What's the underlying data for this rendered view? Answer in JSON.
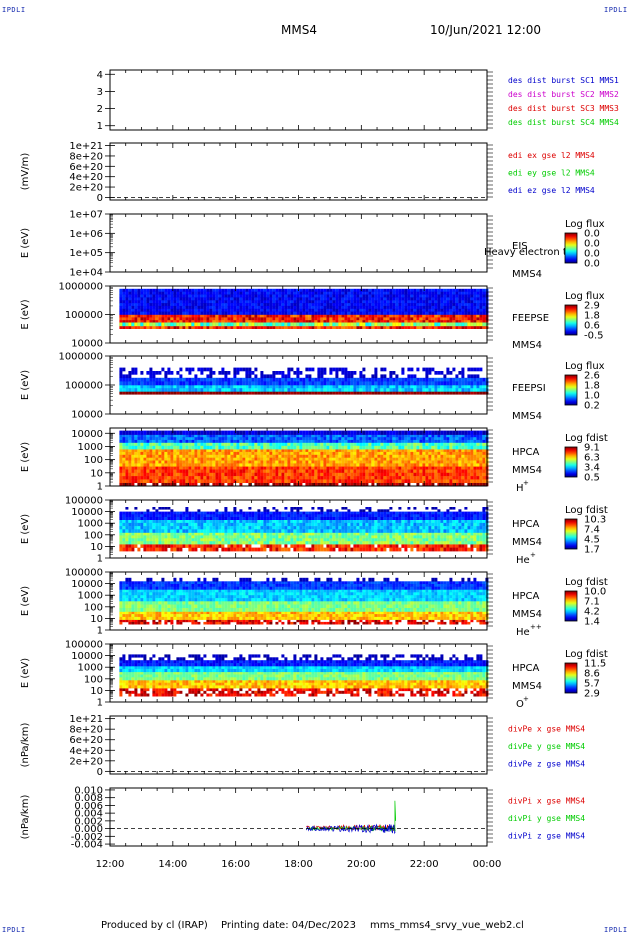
{
  "header": {
    "mission": "MMS4",
    "datetime": "10/Jun/2021 12:00"
  },
  "corner_mark": "IPDLI",
  "footer": {
    "produced_by": "Produced by cl (IRAP)",
    "printing_date": "Printing date: 04/Dec/2023",
    "filename": "mms_mms4_srvy_vue_web2.cl"
  },
  "colors": {
    "blue": "#0000cc",
    "magenta": "#cc00cc",
    "red": "#dd0000",
    "green": "#00cc00"
  },
  "chart_data": {
    "type": "stacked-timeseries",
    "time_axis": {
      "ticks": [
        "12:00",
        "14:00",
        "16:00",
        "18:00",
        "20:00",
        "22:00",
        "00:00"
      ],
      "range_hours": [
        12,
        24
      ]
    },
    "panels": [
      {
        "id": "p1",
        "kind": "line",
        "ylabel": "",
        "ytick_labels": [
          "1",
          "2",
          "3",
          "4"
        ],
        "yrange": [
          0.75,
          4.25
        ],
        "yticks": [
          1,
          2,
          3,
          4
        ],
        "legend": [
          {
            "text": "des dist burst SC1 MMS1",
            "color": "#0000cc"
          },
          {
            "text": "des dist burst SC2 MMS2",
            "color": "#cc00cc"
          },
          {
            "text": "des dist burst SC3 MMS3",
            "color": "#dd0000"
          },
          {
            "text": "des dist burst SC4 MMS4",
            "color": "#00cc00"
          }
        ]
      },
      {
        "id": "p2",
        "kind": "line",
        "ylabel": "(mV/m)",
        "ytick_labels": [
          "0",
          "2e+20",
          "4e+20",
          "6e+20",
          "8e+20",
          "1e+21"
        ],
        "yrange": [
          -5e+19,
          1.05e+21
        ],
        "yticks": [
          0,
          2e+20,
          4e+20,
          6e+20,
          8e+20,
          1e+21
        ],
        "zero_line": true,
        "legend": [
          {
            "text": "edi ex gse l2 MMS4",
            "color": "#dd0000"
          },
          {
            "text": "edi ey gse l2 MMS4",
            "color": "#00cc00"
          },
          {
            "text": "edi ez gse l2 MMS4",
            "color": "#0000cc"
          }
        ]
      },
      {
        "id": "p3",
        "kind": "spectrogram",
        "ylabel": "E (eV)",
        "ytick_labels": [
          "1e+04",
          "1e+05",
          "1e+06",
          "1e+07"
        ],
        "yrange_log": [
          4,
          7
        ],
        "yticks_log": [
          4,
          5,
          6,
          7
        ],
        "labels": [
          "EIS",
          "MMS4"
        ],
        "overlap_text": "Heavy electron to",
        "colorbar": {
          "title": "Log flux",
          "ticks": [
            "0.0",
            "0.0",
            "0.0",
            "0.0"
          ]
        },
        "bands": []
      },
      {
        "id": "p4",
        "kind": "spectrogram",
        "ylabel": "E (eV)",
        "ytick_labels": [
          "10000",
          "100000",
          "1000000"
        ],
        "yrange_log": [
          4,
          6
        ],
        "yticks_log": [
          4,
          5,
          6
        ],
        "labels": [
          "FEEPSE",
          "MMS4"
        ],
        "colorbar": {
          "title": "Log flux",
          "ticks": [
            "2.9",
            "1.8",
            "0.6",
            "-0.5"
          ]
        },
        "bands": [
          {
            "lo": 4.5,
            "hi": 5.0,
            "level": 0.85,
            "noise": 0.12
          },
          {
            "lo": 5.0,
            "hi": 5.9,
            "level": 0.12,
            "noise": 0.06
          },
          {
            "lo": 4.6,
            "hi": 4.72,
            "level": 0.5,
            "noise": 0.15
          }
        ],
        "start_hour": 12.3,
        "end_hour": 23.95
      },
      {
        "id": "p5",
        "kind": "spectrogram",
        "ylabel": "E (eV)",
        "ytick_labels": [
          "10000",
          "100000",
          "1000000"
        ],
        "yrange_log": [
          4,
          6
        ],
        "yticks_log": [
          4,
          5,
          6
        ],
        "labels": [
          "FEEPSI",
          "MMS4"
        ],
        "colorbar": {
          "title": "Log flux",
          "ticks": [
            "2.6",
            "1.8",
            "1.0",
            "0.2"
          ]
        },
        "bands": [
          {
            "lo": 4.68,
            "hi": 4.78,
            "level": 1.0,
            "noise": 0.05
          },
          {
            "lo": 4.78,
            "hi": 5.0,
            "level": 0.32,
            "noise": 0.08
          },
          {
            "lo": 5.0,
            "hi": 5.25,
            "level": 0.18,
            "noise": 0.05
          },
          {
            "lo": 5.25,
            "hi": 5.6,
            "level": 0.08,
            "noise": 0.03,
            "sparse": 0.55
          }
        ],
        "start_hour": 12.3,
        "end_hour": 23.95
      },
      {
        "id": "p6",
        "kind": "spectrogram",
        "ylabel": "E (eV)",
        "ytick_labels": [
          "1",
          "10",
          "100",
          "1000",
          "10000"
        ],
        "yrange_log": [
          0,
          4.4
        ],
        "yticks_log": [
          0,
          1,
          2,
          3,
          4
        ],
        "labels": [
          "HPCA",
          "MMS4",
          "H",
          "+"
        ],
        "colorbar": {
          "title": "Log fdist",
          "ticks": [
            "9.1",
            "6.3",
            "3.4",
            "0.5"
          ]
        },
        "bands": [
          {
            "lo": 0.0,
            "hi": 0.25,
            "level": 1.0,
            "noise": 0.1,
            "sparse": 0.2
          },
          {
            "lo": 0.25,
            "hi": 1.5,
            "level": 0.82,
            "noise": 0.08
          },
          {
            "lo": 1.5,
            "hi": 2.8,
            "level": 0.72,
            "noise": 0.08
          },
          {
            "lo": 2.8,
            "hi": 3.3,
            "level": 0.45,
            "noise": 0.1
          },
          {
            "lo": 3.3,
            "hi": 3.9,
            "level": 0.22,
            "noise": 0.08
          },
          {
            "lo": 3.9,
            "hi": 4.2,
            "level": 0.08,
            "noise": 0.05
          }
        ],
        "start_hour": 12.3,
        "end_hour": 23.95
      },
      {
        "id": "p7",
        "kind": "spectrogram",
        "ylabel": "E (eV)",
        "ytick_labels": [
          "1",
          "10",
          "100",
          "1000",
          "10000",
          "100000"
        ],
        "yrange_log": [
          0,
          5
        ],
        "yticks_log": [
          0,
          1,
          2,
          3,
          4,
          5
        ],
        "labels": [
          "HPCA",
          "MMS4",
          "He",
          "+"
        ],
        "colorbar": {
          "title": "Log fdist",
          "ticks": [
            "10.3",
            "7.4",
            "4.5",
            "1.7"
          ]
        },
        "bands": [
          {
            "lo": 0.6,
            "hi": 1.2,
            "level": 0.85,
            "noise": 0.1,
            "sparse": 0.12
          },
          {
            "lo": 1.2,
            "hi": 2.2,
            "level": 0.5,
            "noise": 0.08
          },
          {
            "lo": 2.2,
            "hi": 3.3,
            "level": 0.32,
            "noise": 0.08
          },
          {
            "lo": 3.3,
            "hi": 4.0,
            "level": 0.15,
            "noise": 0.05
          },
          {
            "lo": 4.0,
            "hi": 4.4,
            "level": 0.05,
            "noise": 0.03,
            "sparse": 0.7
          }
        ],
        "start_hour": 12.3,
        "end_hour": 23.95
      },
      {
        "id": "p8",
        "kind": "spectrogram",
        "ylabel": "E (eV)",
        "ytick_labels": [
          "1",
          "10",
          "100",
          "1000",
          "10000",
          "100000"
        ],
        "yrange_log": [
          0,
          5
        ],
        "yticks_log": [
          0,
          1,
          2,
          3,
          4,
          5
        ],
        "labels": [
          "HPCA",
          "MMS4",
          "He",
          "++"
        ],
        "colorbar": {
          "title": "Log fdist",
          "ticks": [
            "10.0",
            "7.1",
            "4.2",
            "1.4"
          ]
        },
        "bands": [
          {
            "lo": 0.5,
            "hi": 0.9,
            "level": 0.9,
            "noise": 0.1,
            "sparse": 0.3
          },
          {
            "lo": 0.9,
            "hi": 1.6,
            "level": 0.68,
            "noise": 0.08
          },
          {
            "lo": 1.6,
            "hi": 2.5,
            "level": 0.5,
            "noise": 0.06
          },
          {
            "lo": 2.5,
            "hi": 3.5,
            "level": 0.33,
            "noise": 0.06
          },
          {
            "lo": 3.5,
            "hi": 4.2,
            "level": 0.18,
            "noise": 0.05
          },
          {
            "lo": 4.2,
            "hi": 4.5,
            "level": 0.06,
            "noise": 0.03,
            "sparse": 0.65
          }
        ],
        "start_hour": 12.3,
        "end_hour": 23.95
      },
      {
        "id": "p9",
        "kind": "spectrogram",
        "ylabel": "E (eV)",
        "ytick_labels": [
          "1",
          "10",
          "100",
          "1000",
          "10000",
          "100000"
        ],
        "yrange_log": [
          0,
          5
        ],
        "yticks_log": [
          0,
          1,
          2,
          3,
          4,
          5
        ],
        "labels": [
          "HPCA",
          "MMS4",
          "O",
          "+"
        ],
        "colorbar": {
          "title": "Log fdist",
          "ticks": [
            "11.5",
            "8.6",
            "5.7",
            "2.9"
          ]
        },
        "bands": [
          {
            "lo": 0.5,
            "hi": 1.2,
            "level": 0.9,
            "noise": 0.1,
            "sparse": 0.35
          },
          {
            "lo": 1.2,
            "hi": 1.9,
            "level": 0.68,
            "noise": 0.08
          },
          {
            "lo": 1.9,
            "hi": 2.6,
            "level": 0.5,
            "noise": 0.06
          },
          {
            "lo": 2.6,
            "hi": 3.1,
            "level": 0.33,
            "noise": 0.06
          },
          {
            "lo": 3.1,
            "hi": 3.6,
            "level": 0.15,
            "noise": 0.05
          },
          {
            "lo": 3.6,
            "hi": 4.1,
            "level": 0.06,
            "noise": 0.03,
            "sparse": 0.55
          }
        ],
        "start_hour": 12.3,
        "end_hour": 23.95
      },
      {
        "id": "p10",
        "kind": "line",
        "ylabel": "(nPa/km)",
        "ytick_labels": [
          "0",
          "2e+20",
          "4e+20",
          "6e+20",
          "8e+20",
          "1e+21"
        ],
        "yrange": [
          -5e+19,
          1.05e+21
        ],
        "yticks": [
          0,
          2e+20,
          4e+20,
          6e+20,
          8e+20,
          1e+21
        ],
        "zero_line": true,
        "legend": [
          {
            "text": "divPe x gse MMS4",
            "color": "#dd0000"
          },
          {
            "text": "divPe y gse MMS4",
            "color": "#00cc00"
          },
          {
            "text": "divPe z gse MMS4",
            "color": "#0000cc"
          }
        ]
      },
      {
        "id": "p11",
        "kind": "line",
        "ylabel": "(nPa/km)",
        "ytick_labels": [
          "-0.004",
          "-0.002",
          "0.000",
          "0.002",
          "0.004",
          "0.006",
          "0.008",
          "0.010"
        ],
        "yrange": [
          -0.0045,
          0.0105
        ],
        "yticks": [
          -0.004,
          -0.002,
          0,
          0.002,
          0.004,
          0.006,
          0.008,
          0.01
        ],
        "zero_line": true,
        "legend": [
          {
            "text": "divPi x gse MMS4",
            "color": "#dd0000"
          },
          {
            "text": "divPi y gse MMS4",
            "color": "#00cc00"
          },
          {
            "text": "divPi z gse MMS4",
            "color": "#0000cc"
          }
        ],
        "series": [
          {
            "name": "divPi x gse MMS4",
            "color": "#dd0000",
            "x_range": [
              18.25,
              21.1
            ],
            "mean": 0.0003,
            "amp_start": 0.0004,
            "amp_end": 0.0009
          },
          {
            "name": "divPi y gse MMS4",
            "color": "#00cc00",
            "x_range": [
              18.25,
              21.1
            ],
            "mean": 0.0,
            "amp_start": 0.0003,
            "amp_end": 0.0008,
            "spike": {
              "x": 21.07,
              "y": 0.0072
            }
          },
          {
            "name": "divPi z gse MMS4",
            "color": "#0000cc",
            "x_range": [
              18.25,
              21.1
            ],
            "mean": 0.0,
            "amp_start": 0.0005,
            "amp_end": 0.0012
          }
        ]
      }
    ]
  }
}
